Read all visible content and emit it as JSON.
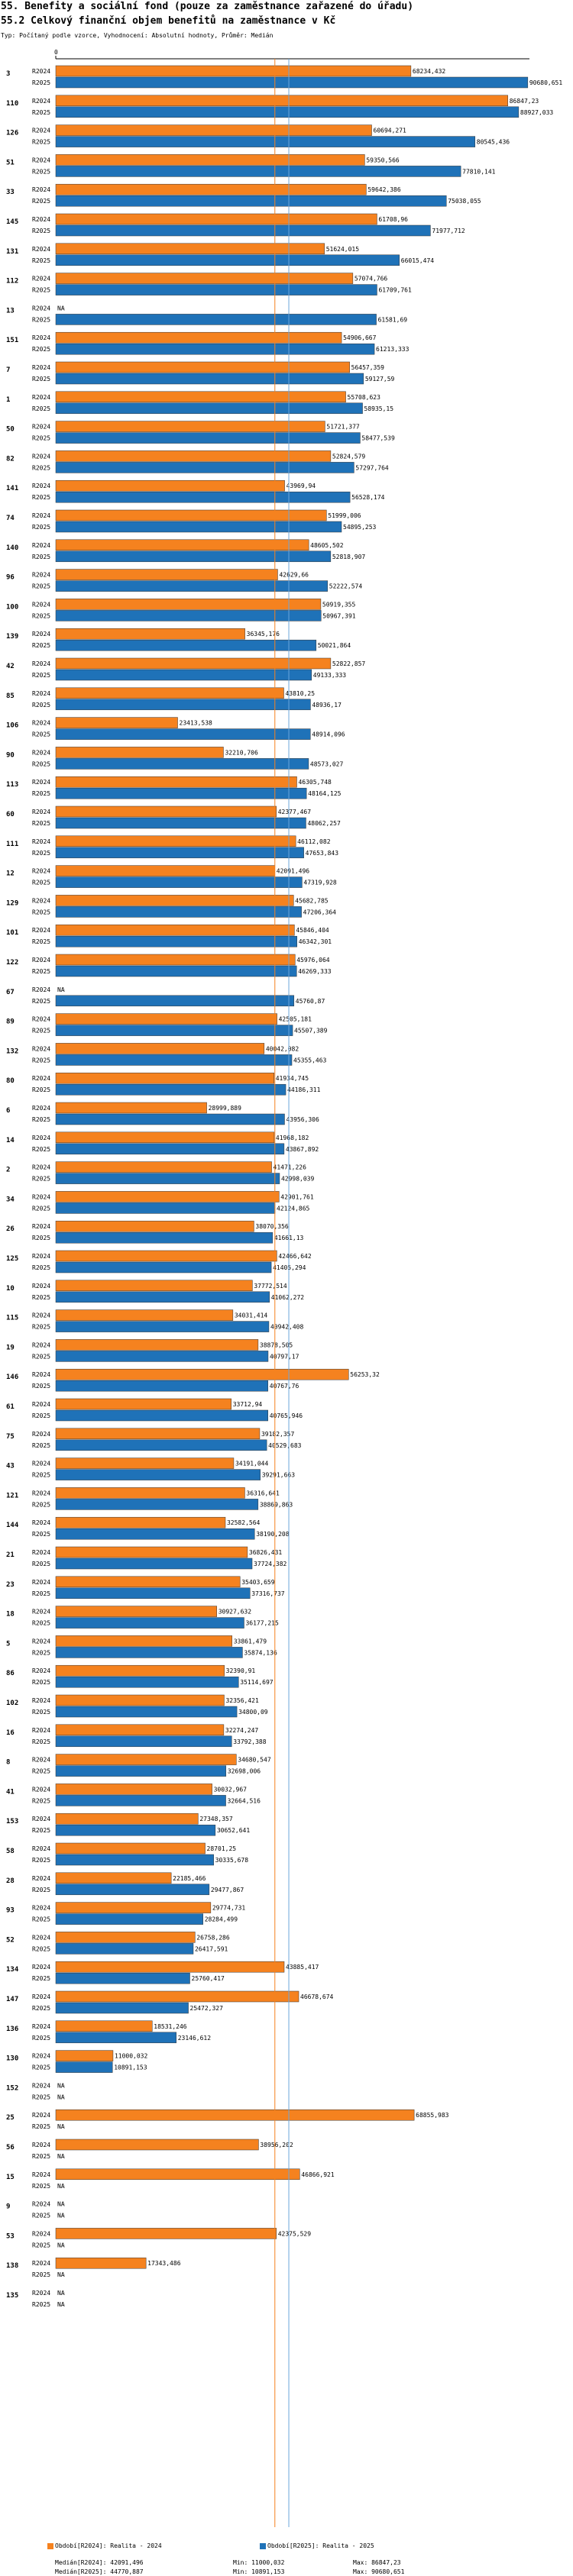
{
  "header": {
    "title": "55. Benefity a sociální fond (pouze za zaměstnance zařazené do úřadu)",
    "subtitle_heading": "55.2 Celkový finanční objem benefitů na zaměstnance v Kč",
    "note": "Typ: Počítaný podle vzorce, Vyhodnocení: Absolutní hodnoty, Průměr: Medián"
  },
  "colors": {
    "r2024": "#f5821f",
    "r2025": "#1f72b8",
    "median2024": "#f5821f",
    "median2025": "#6aa6dc"
  },
  "series_labels": [
    "R2024",
    "R2025"
  ],
  "na_label": "NA",
  "chart_data": {
    "type": "bar",
    "orientation": "horizontal",
    "xlim": [
      0,
      91000
    ],
    "x_tick": "0",
    "series": [
      {
        "name": "R2024",
        "color": "#f5821f"
      },
      {
        "name": "R2025",
        "color": "#1f72b8"
      }
    ],
    "median_lines": {
      "R2024": 42091.496,
      "R2025": 44770.887
    },
    "categories": [
      {
        "id": "3",
        "v2024": 68234.432,
        "v2025": 90680.651
      },
      {
        "id": "110",
        "v2024": 86847.23,
        "v2025": 88927.033
      },
      {
        "id": "126",
        "v2024": 60694.271,
        "v2025": 80545.436
      },
      {
        "id": "51",
        "v2024": 59350.566,
        "v2025": 77810.141
      },
      {
        "id": "33",
        "v2024": 59642.386,
        "v2025": 75038.055
      },
      {
        "id": "145",
        "v2024": 61708.96,
        "v2025": 71977.712
      },
      {
        "id": "131",
        "v2024": 51624.015,
        "v2025": 66015.474
      },
      {
        "id": "112",
        "v2024": 57074.766,
        "v2025": 61709.761
      },
      {
        "id": "13",
        "v2024": null,
        "v2025": 61581.69
      },
      {
        "id": "151",
        "v2024": 54906.667,
        "v2025": 61213.333
      },
      {
        "id": "7",
        "v2024": 56457.359,
        "v2025": 59127.59
      },
      {
        "id": "1",
        "v2024": 55708.623,
        "v2025": 58935.15
      },
      {
        "id": "50",
        "v2024": 51721.377,
        "v2025": 58477.539
      },
      {
        "id": "82",
        "v2024": 52824.579,
        "v2025": 57297.764
      },
      {
        "id": "141",
        "v2024": 43969.94,
        "v2025": 56528.174
      },
      {
        "id": "74",
        "v2024": 51999.006,
        "v2025": 54895.253
      },
      {
        "id": "140",
        "v2024": 48605.502,
        "v2025": 52818.907
      },
      {
        "id": "96",
        "v2024": 42629.66,
        "v2025": 52222.574
      },
      {
        "id": "100",
        "v2024": 50919.355,
        "v2025": 50967.391
      },
      {
        "id": "139",
        "v2024": 36345.176,
        "v2025": 50021.864
      },
      {
        "id": "42",
        "v2024": 52822.857,
        "v2025": 49133.333
      },
      {
        "id": "85",
        "v2024": 43810.25,
        "v2025": 48936.17
      },
      {
        "id": "106",
        "v2024": 23413.538,
        "v2025": 48914.096
      },
      {
        "id": "90",
        "v2024": 32210.706,
        "v2025": 48573.027
      },
      {
        "id": "113",
        "v2024": 46305.748,
        "v2025": 48164.125
      },
      {
        "id": "60",
        "v2024": 42377.467,
        "v2025": 48062.257
      },
      {
        "id": "111",
        "v2024": 46112.082,
        "v2025": 47653.843
      },
      {
        "id": "12",
        "v2024": 42091.496,
        "v2025": 47319.928
      },
      {
        "id": "129",
        "v2024": 45682.785,
        "v2025": 47206.364
      },
      {
        "id": "101",
        "v2024": 45846.404,
        "v2025": 46342.301
      },
      {
        "id": "122",
        "v2024": 45976.064,
        "v2025": 46269.333
      },
      {
        "id": "67",
        "v2024": null,
        "v2025": 45760.87
      },
      {
        "id": "89",
        "v2024": 42505.181,
        "v2025": 45507.389
      },
      {
        "id": "132",
        "v2024": 40042.082,
        "v2025": 45355.463
      },
      {
        "id": "80",
        "v2024": 41934.745,
        "v2025": 44186.311
      },
      {
        "id": "6",
        "v2024": 28999.889,
        "v2025": 43956.306
      },
      {
        "id": "14",
        "v2024": 41968.182,
        "v2025": 43867.892
      },
      {
        "id": "2",
        "v2024": 41471.226,
        "v2025": 42998.039
      },
      {
        "id": "34",
        "v2024": 42901.761,
        "v2025": 42124.865
      },
      {
        "id": "26",
        "v2024": 38070.356,
        "v2025": 41661.13
      },
      {
        "id": "125",
        "v2024": 42466.642,
        "v2025": 41405.294
      },
      {
        "id": "10",
        "v2024": 37772.514,
        "v2025": 41062.272
      },
      {
        "id": "115",
        "v2024": 34031.414,
        "v2025": 40942.408
      },
      {
        "id": "19",
        "v2024": 38878.505,
        "v2025": 40797.17
      },
      {
        "id": "146",
        "v2024": 56253.32,
        "v2025": 40767.76
      },
      {
        "id": "61",
        "v2024": 33712.94,
        "v2025": 40765.946
      },
      {
        "id": "75",
        "v2024": 39182.357,
        "v2025": 40529.683
      },
      {
        "id": "43",
        "v2024": 34191.044,
        "v2025": 39291.663
      },
      {
        "id": "121",
        "v2024": 36316.641,
        "v2025": 38869.863
      },
      {
        "id": "144",
        "v2024": 32582.564,
        "v2025": 38190.208
      },
      {
        "id": "21",
        "v2024": 36826.431,
        "v2025": 37724.382
      },
      {
        "id": "23",
        "v2024": 35403.659,
        "v2025": 37316.737
      },
      {
        "id": "18",
        "v2024": 30927.632,
        "v2025": 36177.215
      },
      {
        "id": "5",
        "v2024": 33861.479,
        "v2025": 35874.136
      },
      {
        "id": "86",
        "v2024": 32390.91,
        "v2025": 35114.697
      },
      {
        "id": "102",
        "v2024": 32356.421,
        "v2025": 34800.09
      },
      {
        "id": "16",
        "v2024": 32274.247,
        "v2025": 33792.388
      },
      {
        "id": "8",
        "v2024": 34680.547,
        "v2025": 32698.006
      },
      {
        "id": "41",
        "v2024": 30032.967,
        "v2025": 32664.516
      },
      {
        "id": "153",
        "v2024": 27348.357,
        "v2025": 30652.641
      },
      {
        "id": "58",
        "v2024": 28701.25,
        "v2025": 30335.678
      },
      {
        "id": "28",
        "v2024": 22185.466,
        "v2025": 29477.867
      },
      {
        "id": "93",
        "v2024": 29774.731,
        "v2025": 28284.499
      },
      {
        "id": "52",
        "v2024": 26758.286,
        "v2025": 26417.591
      },
      {
        "id": "134",
        "v2024": 43885.417,
        "v2025": 25760.417
      },
      {
        "id": "147",
        "v2024": 46678.674,
        "v2025": 25472.327
      },
      {
        "id": "136",
        "v2024": 18531.246,
        "v2025": 23146.612
      },
      {
        "id": "130",
        "v2024": 11000.032,
        "v2025": 10891.153
      },
      {
        "id": "152",
        "v2024": null,
        "v2025": null
      },
      {
        "id": "25",
        "v2024": 68855.983,
        "v2025": null
      },
      {
        "id": "56",
        "v2024": 38956.202,
        "v2025": null
      },
      {
        "id": "15",
        "v2024": 46866.921,
        "v2025": null
      },
      {
        "id": "9",
        "v2024": null,
        "v2025": null
      },
      {
        "id": "53",
        "v2024": 42375.529,
        "v2025": null
      },
      {
        "id": "138",
        "v2024": 17343.486,
        "v2025": null
      },
      {
        "id": "135",
        "v2024": null,
        "v2025": null
      }
    ]
  },
  "footer": {
    "period2024": "Období[R2024]: Realita - 2024",
    "period2025": "Období[R2025]: Realita - 2025",
    "median2024": "Medián[R2024]: 42091,496",
    "median2025": "Medián[R2025]: 44770,887",
    "min2024": "Min: 11000,032",
    "min2025": "Min: 10891,153",
    "max2024": "Max: 86847,23",
    "max2025": "Max: 90680,651"
  }
}
